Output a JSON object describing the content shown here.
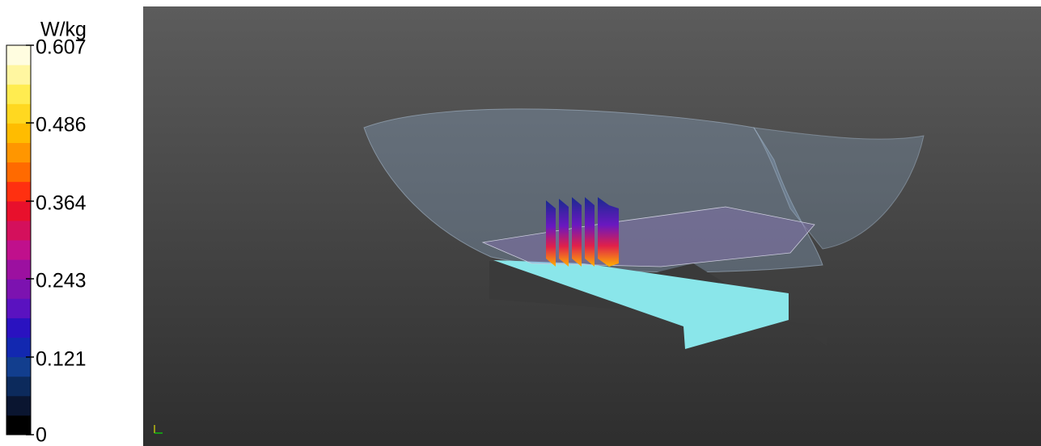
{
  "colorbar": {
    "unit": "W/kg",
    "lim": [
      0,
      0.607
    ],
    "ticks": [
      0,
      0.121,
      0.243,
      0.364,
      0.486,
      0.607
    ],
    "colors": [
      "#000000",
      "#0a1530",
      "#0c2a5c",
      "#123e8e",
      "#1228b0",
      "#2a12c0",
      "#5a12c0",
      "#7c12b0",
      "#9c10a0",
      "#c0108c",
      "#d4105c",
      "#e8102c",
      "#ff3010",
      "#ff6a00",
      "#ff9600",
      "#ffbc00",
      "#ffd820",
      "#ffec50",
      "#fff6a0",
      "#fffde0"
    ]
  }
}
